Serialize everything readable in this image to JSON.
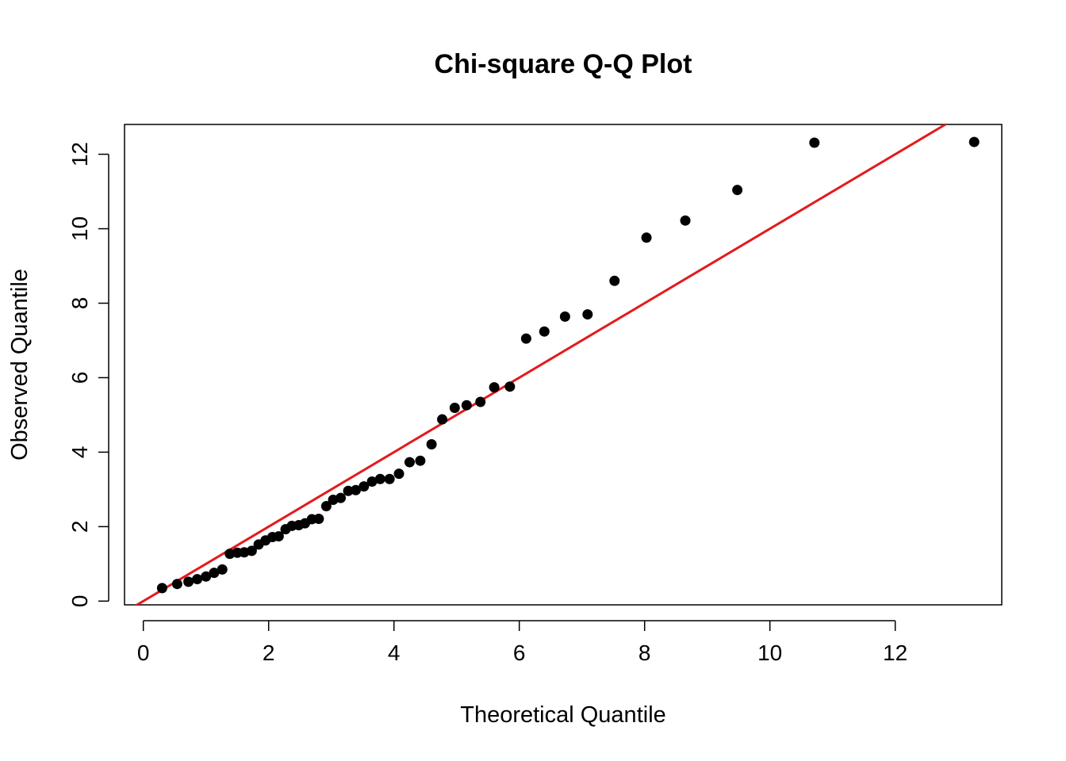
{
  "chart_data": {
    "type": "scatter",
    "title": "Chi-square Q-Q Plot",
    "xlabel": "Theoretical Quantile",
    "ylabel": "Observed Quantile",
    "xlim": [
      -0.3,
      13.7
    ],
    "ylim": [
      -0.1,
      12.8
    ],
    "xticks": [
      0,
      2,
      4,
      6,
      8,
      10,
      12
    ],
    "yticks": [
      0,
      2,
      4,
      6,
      8,
      10,
      12
    ],
    "grid": false,
    "legend": "none",
    "point_color": "#000000",
    "reference_line": {
      "slope": 1,
      "intercept": 0,
      "color": "#e31a1c"
    },
    "points": [
      {
        "x": 0.3,
        "y": 0.35
      },
      {
        "x": 0.54,
        "y": 0.46
      },
      {
        "x": 0.72,
        "y": 0.52
      },
      {
        "x": 0.86,
        "y": 0.59
      },
      {
        "x": 1.0,
        "y": 0.66
      },
      {
        "x": 1.13,
        "y": 0.76
      },
      {
        "x": 1.26,
        "y": 0.85
      },
      {
        "x": 1.38,
        "y": 1.27
      },
      {
        "x": 1.5,
        "y": 1.3
      },
      {
        "x": 1.61,
        "y": 1.31
      },
      {
        "x": 1.73,
        "y": 1.35
      },
      {
        "x": 1.84,
        "y": 1.52
      },
      {
        "x": 1.95,
        "y": 1.63
      },
      {
        "x": 2.06,
        "y": 1.72
      },
      {
        "x": 2.16,
        "y": 1.74
      },
      {
        "x": 2.27,
        "y": 1.93
      },
      {
        "x": 2.37,
        "y": 2.02
      },
      {
        "x": 2.48,
        "y": 2.04
      },
      {
        "x": 2.58,
        "y": 2.09
      },
      {
        "x": 2.69,
        "y": 2.2
      },
      {
        "x": 2.8,
        "y": 2.21
      },
      {
        "x": 2.92,
        "y": 2.55
      },
      {
        "x": 3.03,
        "y": 2.72
      },
      {
        "x": 3.15,
        "y": 2.77
      },
      {
        "x": 3.27,
        "y": 2.96
      },
      {
        "x": 3.39,
        "y": 2.98
      },
      {
        "x": 3.52,
        "y": 3.08
      },
      {
        "x": 3.65,
        "y": 3.21
      },
      {
        "x": 3.78,
        "y": 3.28
      },
      {
        "x": 3.93,
        "y": 3.28
      },
      {
        "x": 4.08,
        "y": 3.42
      },
      {
        "x": 4.25,
        "y": 3.73
      },
      {
        "x": 4.42,
        "y": 3.77
      },
      {
        "x": 4.6,
        "y": 4.21
      },
      {
        "x": 4.77,
        "y": 4.88
      },
      {
        "x": 4.97,
        "y": 5.19
      },
      {
        "x": 5.16,
        "y": 5.26
      },
      {
        "x": 5.38,
        "y": 5.35
      },
      {
        "x": 5.6,
        "y": 5.74
      },
      {
        "x": 5.85,
        "y": 5.76
      },
      {
        "x": 6.11,
        "y": 7.05
      },
      {
        "x": 6.4,
        "y": 7.24
      },
      {
        "x": 6.73,
        "y": 7.64
      },
      {
        "x": 7.09,
        "y": 7.7
      },
      {
        "x": 7.52,
        "y": 8.6
      },
      {
        "x": 8.03,
        "y": 9.76
      },
      {
        "x": 8.65,
        "y": 10.22
      },
      {
        "x": 9.48,
        "y": 11.04
      },
      {
        "x": 10.71,
        "y": 12.31
      },
      {
        "x": 13.26,
        "y": 12.33
      }
    ]
  }
}
